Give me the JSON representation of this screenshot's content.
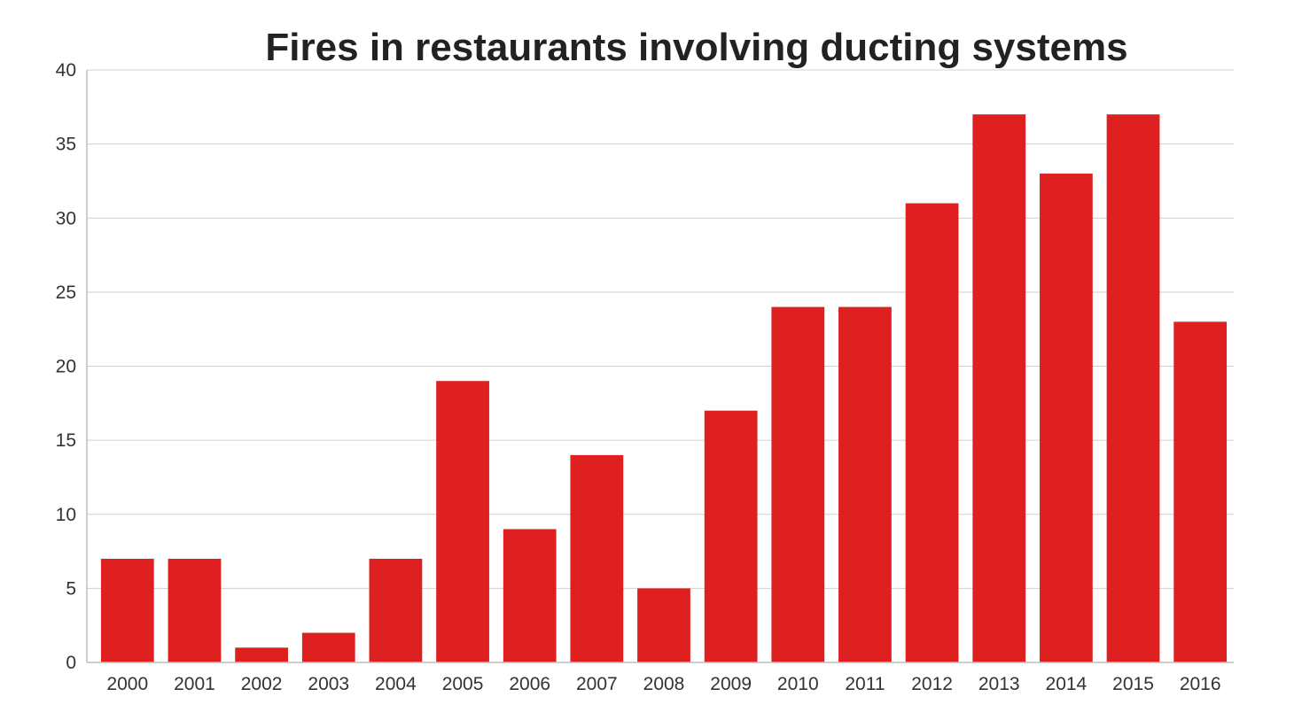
{
  "chart_data": {
    "type": "bar",
    "title": "Fires in restaurants involving ducting systems",
    "xlabel": "",
    "ylabel": "",
    "categories": [
      "2000",
      "2001",
      "2002",
      "2003",
      "2004",
      "2005",
      "2006",
      "2007",
      "2008",
      "2009",
      "2010",
      "2011",
      "2012",
      "2013",
      "2014",
      "2015",
      "2016"
    ],
    "values": [
      7,
      7,
      1,
      2,
      7,
      19,
      9,
      14,
      5,
      17,
      24,
      24,
      31,
      37,
      33,
      37,
      23
    ],
    "ylim": [
      0,
      40
    ],
    "yticks": [
      "0",
      "5",
      "10",
      "15",
      "20",
      "25",
      "30",
      "35",
      "40"
    ],
    "grid": true,
    "legend": "none",
    "colors": {
      "bar": "#df2020",
      "grid": "#cfcfcf"
    }
  }
}
